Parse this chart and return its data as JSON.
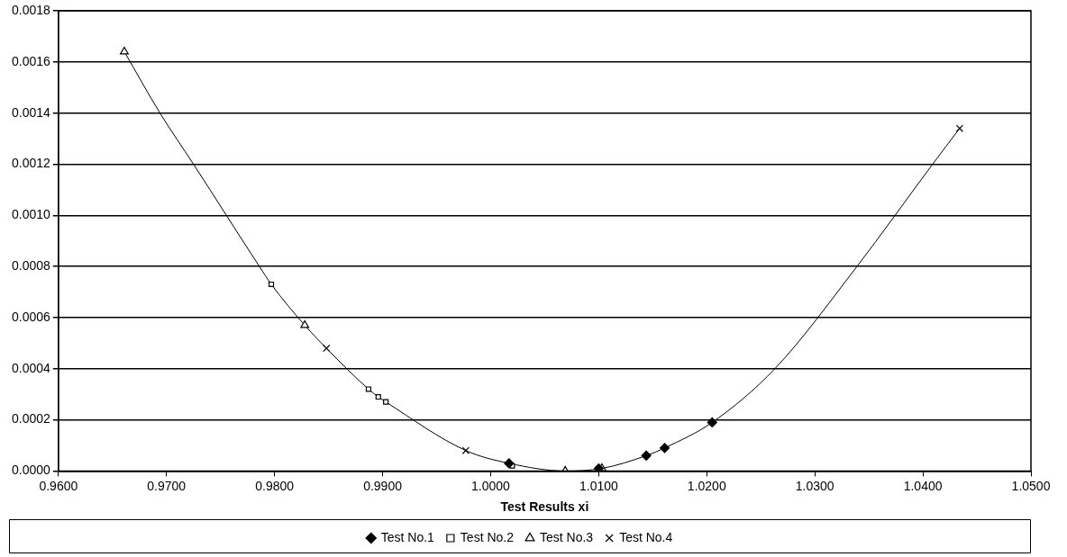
{
  "chart_data": {
    "type": "scatter",
    "xlabel": "Test Results xi",
    "xlim": [
      0.96,
      1.05
    ],
    "xticks": [
      {
        "value": 0.96,
        "label": "0.9600"
      },
      {
        "value": 0.97,
        "label": "0.9700"
      },
      {
        "value": 0.98,
        "label": "0.9800"
      },
      {
        "value": 0.99,
        "label": "0.9900"
      },
      {
        "value": 1.0,
        "label": "1.0000"
      },
      {
        "value": 1.01,
        "label": "1.0100"
      },
      {
        "value": 1.02,
        "label": "1.0200"
      },
      {
        "value": 1.03,
        "label": "1.0300"
      },
      {
        "value": 1.04,
        "label": "1.0400"
      },
      {
        "value": 1.05,
        "label": "1.0500"
      }
    ],
    "ylim": [
      0,
      0.0018
    ],
    "yticks": [
      {
        "value": 0,
        "label": "0.0000"
      },
      {
        "value": 0.0002,
        "label": "0.0002"
      },
      {
        "value": 0.0004,
        "label": "0.0004"
      },
      {
        "value": 0.0006,
        "label": "0.0006"
      },
      {
        "value": 0.0008,
        "label": "0.0008"
      },
      {
        "value": 0.001,
        "label": "0.0010"
      },
      {
        "value": 0.0012,
        "label": "0.0012"
      },
      {
        "value": 0.0014,
        "label": "0.0014"
      },
      {
        "value": 0.0016,
        "label": "0.0016"
      },
      {
        "value": 0.0018,
        "label": "0.0018"
      }
    ],
    "grid": "y",
    "legend": "bottom",
    "series": [
      {
        "type": "line",
        "color": "#000000",
        "marker": "none",
        "x": [
          0.9661,
          0.9694,
          0.9725,
          0.9786,
          0.9797,
          0.9828,
          0.9848,
          0.9887,
          0.9896,
          0.9903,
          0.9977,
          1.0017,
          1.0069,
          1.0103,
          1.0144,
          1.0161,
          1.0205,
          1.0263,
          1.0339,
          1.0409,
          1.0434
        ],
        "values": [
          0.00164,
          0.0014,
          0.0012,
          0.0008,
          0.00073,
          0.00057,
          0.00048,
          0.00032,
          0.00029,
          0.00027,
          8e-05,
          3e-05,
          0.0,
          1e-05,
          6e-05,
          9e-05,
          0.00019,
          0.0004,
          0.0008,
          0.0012,
          0.00134
        ]
      },
      {
        "name": "Test No.1",
        "color": "#000000",
        "marker": "diamond",
        "x": [
          1.0017,
          1.01,
          1.0144,
          1.0161,
          1.0205
        ],
        "values": [
          3e-05,
          1e-05,
          6e-05,
          9e-05,
          0.00019
        ]
      },
      {
        "name": "Test No.2",
        "color": "#000000",
        "marker": "square",
        "x": [
          0.9797,
          0.9887,
          0.9896,
          0.9903,
          1.002
        ],
        "values": [
          0.00073,
          0.00032,
          0.00029,
          0.00027,
          2e-05
        ]
      },
      {
        "name": "Test No.3",
        "color": "#000000",
        "marker": "triangle",
        "x": [
          0.9661,
          0.9828,
          1.0069,
          1.0103
        ],
        "values": [
          0.00164,
          0.00057,
          0.0,
          1e-05
        ]
      },
      {
        "name": "Test No.4",
        "color": "#000000",
        "marker": "cross",
        "x": [
          0.9848,
          0.9977,
          1.0434
        ],
        "values": [
          0.00048,
          8e-05,
          0.00134
        ]
      }
    ]
  }
}
